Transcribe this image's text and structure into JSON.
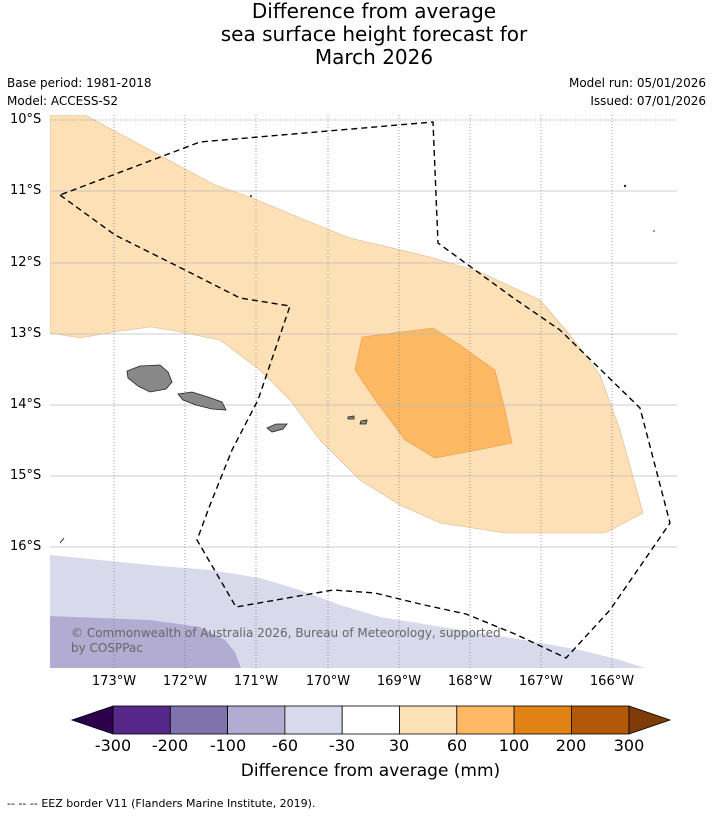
{
  "title": {
    "line1": "Difference from average",
    "line2": "sea surface height forecast for",
    "line3": "March 2026"
  },
  "meta": {
    "base_period": "Base period: 1981-2018",
    "model": "Model: ACCESS-S2",
    "model_run": "Model run: 05/01/2026",
    "issued": "Issued: 07/01/2026"
  },
  "map": {
    "lat_labels": [
      "10°S",
      "11°S",
      "12°S",
      "13°S",
      "14°S",
      "15°S",
      "16°S"
    ],
    "lon_labels": [
      "173°W",
      "172°W",
      "171°W",
      "170°W",
      "169°W",
      "168°W",
      "167°W",
      "166°W"
    ],
    "copyright_line1": "© Commonwealth of Australia 2026, Bureau of Meteorology, supported",
    "copyright_line2": "by COSPPac",
    "land_color": "#888888",
    "eez_label": "EEZ border"
  },
  "legend": {
    "title": "Difference from average (mm)",
    "ticks": [
      "-300",
      "-200",
      "-100",
      "-60",
      "-30",
      "30",
      "60",
      "100",
      "200",
      "300"
    ],
    "colors": {
      "below_min": "#2d004b",
      "bins": [
        "#542788",
        "#8073ac",
        "#b2abd2",
        "#d8daeb",
        "#ffffff",
        "#fee0b6",
        "#fdb863",
        "#e08214",
        "#b35806"
      ],
      "above_max": "#7f3b08"
    }
  },
  "footer": {
    "prefix": "-- -- --",
    "text": "EEZ border V11 (Flanders Marine Institute, 2019)."
  }
}
